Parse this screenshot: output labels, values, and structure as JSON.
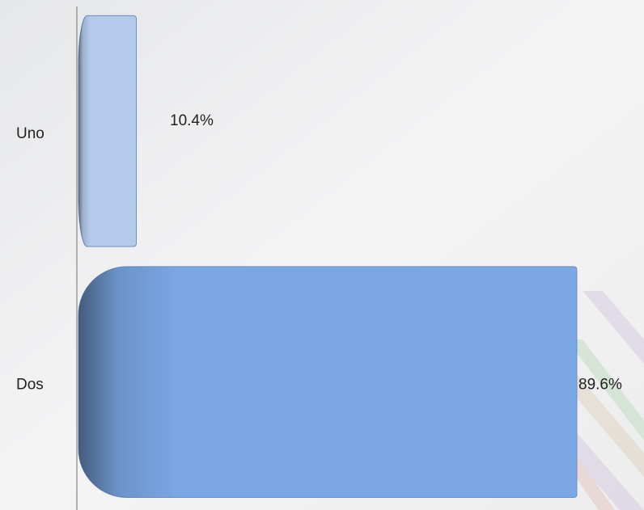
{
  "chart_data": {
    "type": "bar",
    "orientation": "horizontal",
    "categories": [
      "Uno",
      "Dos"
    ],
    "values": [
      10.4,
      89.6
    ],
    "value_labels": [
      "10.4%",
      "89.6%"
    ],
    "colors": [
      "#b3caeb",
      "#7ba7e4"
    ]
  }
}
